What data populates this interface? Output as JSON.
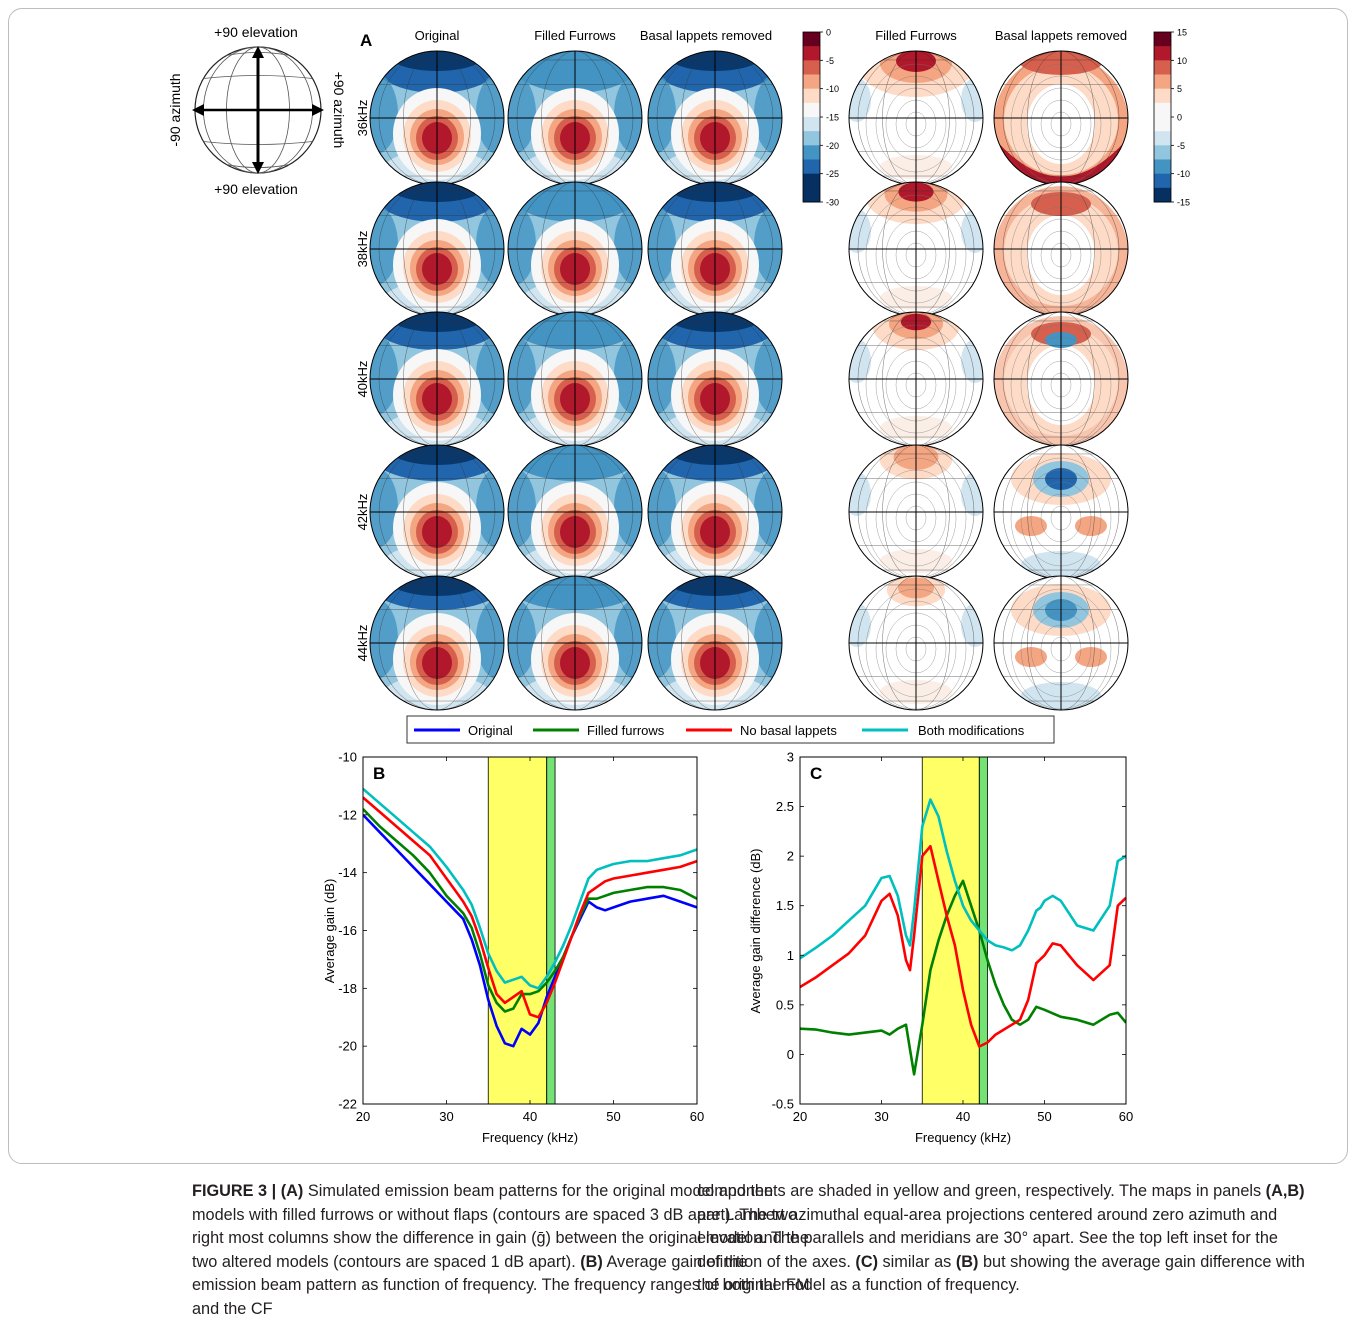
{
  "inset": {
    "top_label": "+90 elevation",
    "bottom_label": "+90 elevation",
    "left_label": "-90 azimuth",
    "right_label": "+90 azimuth"
  },
  "panelA": {
    "letter": "A",
    "column_titles": [
      "Original",
      "Filled Furrows",
      "Basal lappets removed",
      "Filled Furrows",
      "Basal lappets removed"
    ],
    "row_labels": [
      "36kHz",
      "38kHz",
      "40kHz",
      "42kHz",
      "44kHz"
    ],
    "colorbar_gain_ticks": [
      "0",
      "-5",
      "-10",
      "-15",
      "-20",
      "-25",
      "-30"
    ],
    "colorbar_diff_ticks": [
      "15",
      "10",
      "5",
      "0",
      "-5",
      "-10",
      "-15"
    ],
    "colors": {
      "dark_red": "#b2182b",
      "red": "#d6604d",
      "salmon": "#f4a582",
      "peach": "#fddbc7",
      "white": "#f7f7f7",
      "pale_blue": "#d1e5f0",
      "light_blue": "#92c5de",
      "blue": "#4393c3",
      "dark_blue": "#2166ac",
      "navy": "#053061",
      "maroon": "#67001f"
    }
  },
  "legend": {
    "items": [
      {
        "label": "Original",
        "color": "#0000ff"
      },
      {
        "label": "Filled furrows",
        "color": "#008000"
      },
      {
        "label": "No basal lappets",
        "color": "#ff0000"
      },
      {
        "label": "Both modifications",
        "color": "#00bfbf"
      }
    ]
  },
  "chart_data": [
    {
      "panel": "B",
      "type": "line",
      "xlabel": "Frequency (kHz)",
      "ylabel": "Average gain (dB)",
      "xlim": [
        20,
        60
      ],
      "ylim": [
        -22,
        -10
      ],
      "xticks": [
        "20",
        "30",
        "40",
        "50",
        "60"
      ],
      "yticks": [
        "-10",
        "-12",
        "-14",
        "-16",
        "-18",
        "-20",
        "-22"
      ],
      "shaded_bands": [
        {
          "name": "FM",
          "x": [
            35,
            42
          ],
          "color": "#ffff00"
        },
        {
          "name": "CF",
          "x": [
            42,
            43
          ],
          "color": "#00cc00"
        }
      ],
      "series": [
        {
          "name": "Original",
          "color": "#0000ff",
          "x": [
            20,
            22,
            24,
            26,
            28,
            30,
            31,
            32,
            33,
            34,
            35,
            36,
            37,
            38,
            39,
            40,
            41,
            42,
            43,
            44,
            45,
            46,
            47,
            48,
            49,
            50,
            52,
            54,
            56,
            58,
            60
          ],
          "values": [
            -12.0,
            -12.6,
            -13.2,
            -13.8,
            -14.4,
            -15.0,
            -15.3,
            -15.6,
            -16.3,
            -17.2,
            -18.4,
            -19.3,
            -19.9,
            -20.0,
            -19.4,
            -19.6,
            -19.2,
            -18.3,
            -17.6,
            -16.9,
            -16.2,
            -15.6,
            -15.0,
            -15.2,
            -15.3,
            -15.2,
            -15.0,
            -14.9,
            -14.8,
            -15.0,
            -15.2
          ]
        },
        {
          "name": "Filled furrows",
          "color": "#008000",
          "x": [
            20,
            22,
            24,
            26,
            28,
            30,
            31,
            32,
            33,
            34,
            35,
            36,
            37,
            38,
            39,
            40,
            41,
            42,
            43,
            44,
            45,
            46,
            47,
            48,
            49,
            50,
            52,
            54,
            56,
            58,
            60
          ],
          "values": [
            -11.8,
            -12.4,
            -12.9,
            -13.4,
            -14.0,
            -14.8,
            -15.1,
            -15.4,
            -15.9,
            -16.8,
            -17.9,
            -18.5,
            -18.8,
            -18.7,
            -18.2,
            -18.2,
            -18.1,
            -17.8,
            -17.4,
            -16.9,
            -16.2,
            -15.5,
            -14.9,
            -14.9,
            -14.8,
            -14.7,
            -14.6,
            -14.5,
            -14.5,
            -14.6,
            -14.9
          ]
        },
        {
          "name": "No basal lappets",
          "color": "#ff0000",
          "x": [
            20,
            22,
            24,
            26,
            28,
            30,
            31,
            32,
            33,
            34,
            35,
            36,
            37,
            38,
            39,
            40,
            41,
            42,
            43,
            44,
            45,
            46,
            47,
            48,
            49,
            50,
            52,
            54,
            56,
            58,
            60
          ],
          "values": [
            -11.4,
            -11.9,
            -12.4,
            -12.9,
            -13.4,
            -14.2,
            -14.6,
            -15.0,
            -15.5,
            -16.3,
            -17.3,
            -18.2,
            -18.5,
            -18.3,
            -18.1,
            -18.9,
            -19.0,
            -18.5,
            -17.8,
            -17.0,
            -16.2,
            -15.4,
            -14.7,
            -14.5,
            -14.3,
            -14.2,
            -14.1,
            -14.0,
            -13.9,
            -13.8,
            -13.6
          ]
        },
        {
          "name": "Both modifications",
          "color": "#00bfbf",
          "x": [
            20,
            22,
            24,
            26,
            28,
            30,
            31,
            32,
            33,
            34,
            35,
            36,
            37,
            38,
            39,
            40,
            41,
            42,
            43,
            44,
            45,
            46,
            47,
            48,
            49,
            50,
            52,
            54,
            56,
            58,
            60
          ],
          "values": [
            -11.1,
            -11.6,
            -12.1,
            -12.6,
            -13.1,
            -13.8,
            -14.2,
            -14.6,
            -15.1,
            -15.9,
            -16.8,
            -17.4,
            -17.8,
            -17.7,
            -17.6,
            -17.9,
            -18.0,
            -17.6,
            -17.1,
            -16.5,
            -15.8,
            -15.0,
            -14.2,
            -13.9,
            -13.8,
            -13.7,
            -13.6,
            -13.6,
            -13.5,
            -13.4,
            -13.2
          ]
        }
      ]
    },
    {
      "panel": "C",
      "type": "line",
      "xlabel": "Frequency (kHz)",
      "ylabel": "Average gain difference (dB)",
      "xlim": [
        20,
        60
      ],
      "ylim": [
        -0.5,
        3
      ],
      "xticks": [
        "20",
        "30",
        "40",
        "50",
        "60"
      ],
      "yticks": [
        "3",
        "2.5",
        "2",
        "1.5",
        "1",
        "0.5",
        "0",
        "-0.5"
      ],
      "shaded_bands": [
        {
          "name": "FM",
          "x": [
            35,
            42
          ],
          "color": "#ffff00"
        },
        {
          "name": "CF",
          "x": [
            42,
            43
          ],
          "color": "#00cc00"
        }
      ],
      "series": [
        {
          "name": "Filled furrows",
          "color": "#008000",
          "x": [
            20,
            22,
            24,
            26,
            28,
            30,
            31,
            32,
            33,
            33.5,
            34,
            35,
            36,
            37,
            38,
            39,
            40,
            41,
            42,
            43,
            44,
            45,
            46,
            47,
            48,
            49,
            50,
            52,
            54,
            56,
            58,
            59,
            60
          ],
          "values": [
            0.26,
            0.25,
            0.22,
            0.2,
            0.22,
            0.24,
            0.2,
            0.26,
            0.3,
            0.05,
            -0.2,
            0.3,
            0.85,
            1.15,
            1.4,
            1.6,
            1.75,
            1.5,
            1.25,
            0.95,
            0.7,
            0.5,
            0.35,
            0.3,
            0.35,
            0.48,
            0.45,
            0.38,
            0.35,
            0.3,
            0.4,
            0.42,
            0.32
          ]
        },
        {
          "name": "No basal lappets",
          "color": "#ff0000",
          "x": [
            20,
            22,
            24,
            26,
            28,
            30,
            31,
            32,
            33,
            33.5,
            34,
            35,
            36,
            37,
            38,
            39,
            40,
            41,
            42,
            43,
            44,
            45,
            46,
            47,
            48,
            49,
            50,
            51,
            52,
            54,
            56,
            58,
            59,
            60
          ],
          "values": [
            0.68,
            0.78,
            0.9,
            1.02,
            1.2,
            1.55,
            1.62,
            1.4,
            0.95,
            0.85,
            1.2,
            2.0,
            2.1,
            1.75,
            1.4,
            1.1,
            0.65,
            0.3,
            0.08,
            0.12,
            0.2,
            0.25,
            0.3,
            0.35,
            0.55,
            0.92,
            1.0,
            1.12,
            1.1,
            0.9,
            0.75,
            0.9,
            1.5,
            1.58
          ]
        },
        {
          "name": "Both modifications",
          "color": "#00bfbf",
          "x": [
            20,
            22,
            24,
            26,
            28,
            30,
            31,
            32,
            33,
            33.5,
            34,
            35,
            36,
            37,
            38,
            39,
            40,
            41,
            42,
            43,
            44,
            45,
            46,
            47,
            48,
            49,
            49.5,
            50,
            51,
            52,
            54,
            56,
            58,
            59,
            60
          ],
          "values": [
            0.97,
            1.08,
            1.2,
            1.35,
            1.5,
            1.78,
            1.8,
            1.6,
            1.2,
            1.1,
            1.45,
            2.3,
            2.57,
            2.4,
            2.05,
            1.75,
            1.5,
            1.35,
            1.25,
            1.15,
            1.1,
            1.08,
            1.05,
            1.1,
            1.25,
            1.45,
            1.48,
            1.55,
            1.6,
            1.55,
            1.3,
            1.25,
            1.5,
            1.95,
            2.0
          ]
        }
      ]
    }
  ],
  "caption": {
    "label": "FIGURE 3 |",
    "left_parts": [
      {
        "b": "(A)"
      },
      {
        "t": " Simulated emission beam patterns for the original model and the models with filled furrows or without flaps (contours are spaced 3 dB apart). The two right most columns show the difference in gain (ḡ) between the original model and the two altered models (contours are spaced 1 dB apart). "
      },
      {
        "b": "(B)"
      },
      {
        "t": " Average gain of the emission beam pattern as function of frequency. The frequency ranges of both the FM and the CF"
      }
    ],
    "right_parts": [
      {
        "t": "components are shaded in yellow and green, respectively. The maps in panels "
      },
      {
        "b": "(A,B)"
      },
      {
        "t": " are Lambert azimuthal equal-area projections centered around zero azimuth and elevation. The parallels and meridians are 30° apart. See the top left inset for the definition of the axes. "
      },
      {
        "b": "(C)"
      },
      {
        "t": " similar as "
      },
      {
        "b": "(B)"
      },
      {
        "t": " but showing the average gain difference with the original model as a function of frequency."
      }
    ]
  }
}
